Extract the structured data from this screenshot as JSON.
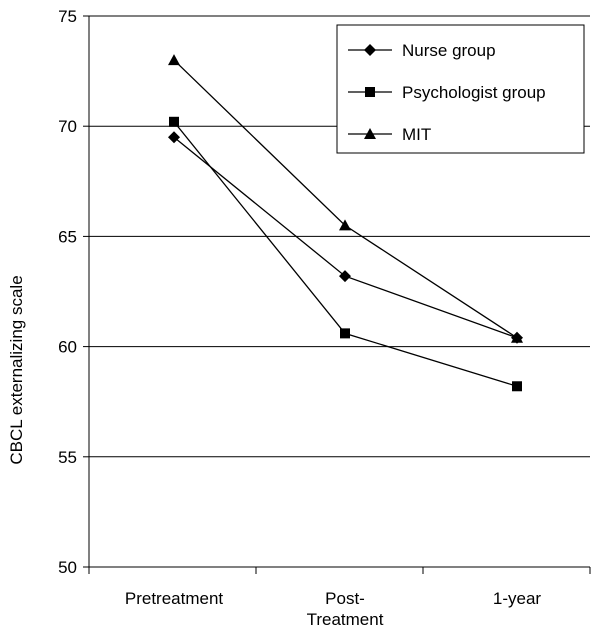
{
  "chart_data": {
    "type": "line",
    "categories": [
      "Pretreatment",
      "Post-\nTreatment",
      "1-year"
    ],
    "ylabel": "CBCL externalizing scale",
    "xlabel": "",
    "title": "",
    "ylim": [
      50,
      75
    ],
    "yticks": [
      50,
      55,
      60,
      65,
      70,
      75
    ],
    "grid": true,
    "legend": "top-right",
    "series": [
      {
        "name": "Nurse group",
        "marker": "diamond",
        "values": [
          69.5,
          63.2,
          60.4
        ]
      },
      {
        "name": "Psychologist group",
        "marker": "square",
        "values": [
          70.2,
          60.6,
          58.2
        ]
      },
      {
        "name": "MIT",
        "marker": "triangle",
        "values": [
          73.0,
          65.5,
          60.4
        ]
      }
    ]
  }
}
